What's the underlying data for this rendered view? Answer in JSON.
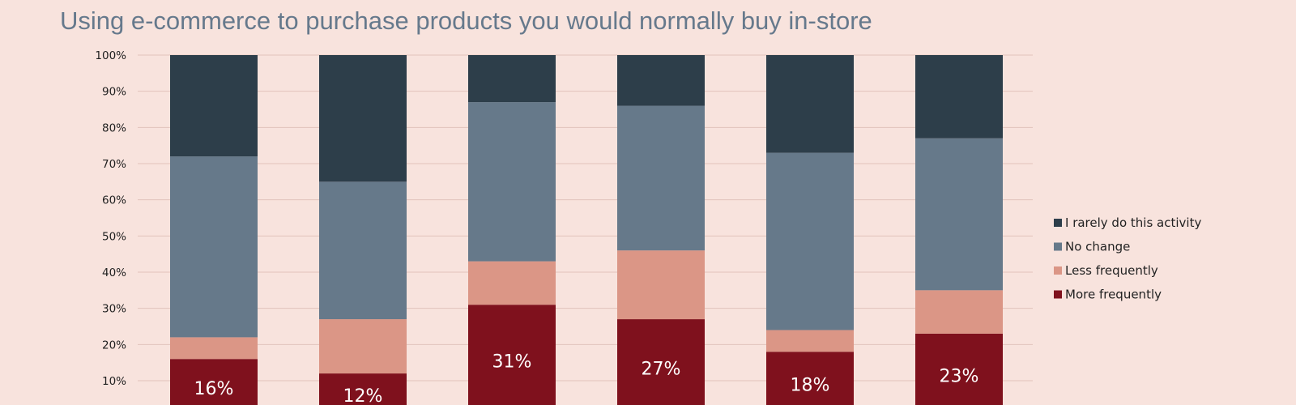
{
  "chart_data": {
    "type": "bar",
    "stacked": true,
    "percent": true,
    "title": "Using e-commerce to purchase products you would normally buy in-store",
    "xlabel": "",
    "ylabel": "",
    "ylim": [
      0,
      100
    ],
    "y_ticks": [
      "10%",
      "20%",
      "30%",
      "40%",
      "50%",
      "60%",
      "70%",
      "80%",
      "90%",
      "100%"
    ],
    "grid": true,
    "legend_position": "right",
    "categories": [
      "",
      "",
      "",
      "",
      "",
      ""
    ],
    "series": [
      {
        "name": "More frequently",
        "color": "#7f111d",
        "values": [
          16,
          12,
          31,
          27,
          18,
          23
        ],
        "labels": [
          "16%",
          "12%",
          "31%",
          "27%",
          "18%",
          "23%"
        ]
      },
      {
        "name": "Less frequently",
        "color": "#db9686",
        "values": [
          6,
          15,
          12,
          19,
          6,
          12
        ]
      },
      {
        "name": "No change",
        "color": "#66798a",
        "values": [
          50,
          38,
          44,
          40,
          49,
          42
        ]
      },
      {
        "name": "I rarely do this activity",
        "color": "#2d3e4a",
        "values": [
          28,
          35,
          13,
          14,
          27,
          23
        ]
      }
    ]
  }
}
